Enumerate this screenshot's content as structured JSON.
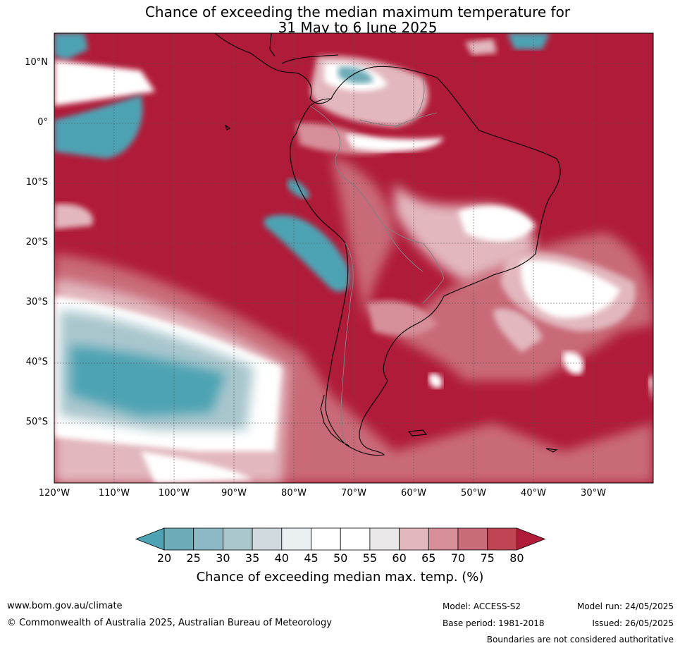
{
  "title": {
    "line1": "Chance of exceeding the median maximum temperature for",
    "line2": "31 May to 6 June 2025"
  },
  "map": {
    "lat_labels": [
      "10°N",
      "0°",
      "10°S",
      "20°S",
      "30°S",
      "40°S",
      "50°S"
    ],
    "lon_labels": [
      "120°W",
      "110°W",
      "100°W",
      "90°W",
      "80°W",
      "70°W",
      "60°W",
      "50°W",
      "40°W",
      "30°W"
    ],
    "extent": {
      "lon_min": -120,
      "lon_max": -20,
      "lat_min": -60,
      "lat_max": 15
    }
  },
  "colorbar": {
    "ticks": [
      "20",
      "25",
      "30",
      "35",
      "40",
      "45",
      "50",
      "55",
      "60",
      "65",
      "70",
      "75",
      "80"
    ],
    "colors": [
      "#4da3b3",
      "#6dabb7",
      "#8bbac6",
      "#a9c6cd",
      "#d0dade",
      "#eaf0f2",
      "#ffffff",
      "#ffffff",
      "#ebe8ea",
      "#e2b7bd",
      "#d68f99",
      "#c96b78",
      "#bf4554",
      "#b01b39"
    ],
    "label": "Chance of exceeding median max. temp. (%)"
  },
  "footer": {
    "website": "www.bom.gov.au/climate",
    "copyright": "© Commonwealth of Australia 2025, Australian Bureau of Meteorology",
    "model": "Model: ACCESS-S2",
    "model_run": "Model run: 24/05/2025",
    "base_period": "Base period: 1981-2018",
    "issued": "Issued: 26/05/2025",
    "disclaimer": "Boundaries are not considered authoritative"
  }
}
